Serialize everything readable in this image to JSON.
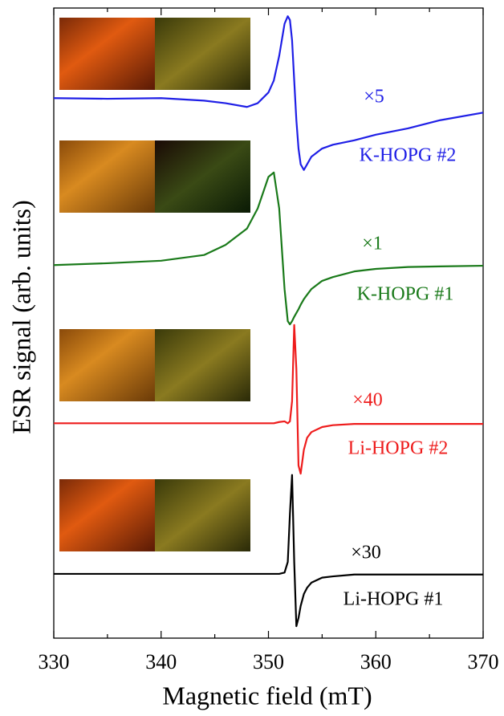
{
  "chart_data": {
    "type": "line",
    "x_label": "Magnetic field (mT)",
    "y_label": "ESR signal (arb. units)",
    "xlim": [
      330,
      370
    ],
    "xticks": [
      330,
      340,
      350,
      360,
      370
    ],
    "xminorticks": [
      335,
      345,
      355,
      365
    ],
    "ylim": [
      0,
      100
    ],
    "x": [
      330,
      335,
      340,
      344,
      346,
      348,
      349,
      350,
      350.5,
      351,
      351.5,
      351.8,
      352,
      352.2,
      352.4,
      352.6,
      352.8,
      353,
      353.3,
      353.6,
      354,
      355,
      356,
      358,
      360,
      363,
      366,
      370
    ],
    "series": [
      {
        "name": "K-HOPG #2",
        "multiplier": "×5",
        "color": "#1f1fe6",
        "values": [
          85.7,
          85.6,
          85.7,
          85.3,
          84.9,
          84.3,
          84.9,
          86.6,
          88.5,
          92.4,
          97.5,
          98.7,
          98.1,
          94.9,
          88.5,
          82.2,
          77.7,
          75.2,
          74.3,
          75.2,
          76.4,
          77.7,
          78.3,
          79.0,
          79.9,
          80.9,
          82.2,
          83.4
        ]
      },
      {
        "name": "K-HOPG #1",
        "multiplier": "×1",
        "color": "#1a7a1a",
        "values": [
          59.2,
          59.5,
          59.9,
          60.8,
          62.4,
          65.0,
          68.2,
          73.2,
          73.9,
          68.2,
          55.4,
          50.3,
          49.8,
          50.3,
          51.0,
          51.6,
          52.2,
          52.9,
          53.8,
          54.5,
          55.4,
          56.7,
          57.3,
          58.2,
          58.6,
          58.9,
          59.0,
          59.1
        ]
      },
      {
        "name": "Li-HOPG #2",
        "multiplier": "×40",
        "color": "#ee1c1c",
        "values": [
          34.1,
          34.1,
          34.1,
          34.1,
          34.1,
          34.1,
          34.1,
          34.1,
          34.1,
          34.3,
          34.4,
          34.1,
          34.4,
          37.6,
          49.7,
          42.7,
          27.4,
          26.1,
          29.9,
          31.8,
          32.7,
          33.5,
          33.8,
          34.0,
          34.0,
          34.0,
          34.0,
          34.0
        ]
      },
      {
        "name": "Li-HOPG #1",
        "multiplier": "×30",
        "color": "#000000",
        "values": [
          10.2,
          10.2,
          10.2,
          10.2,
          10.2,
          10.2,
          10.2,
          10.2,
          10.2,
          10.2,
          10.4,
          12.1,
          19.7,
          25.9,
          12.1,
          1.9,
          3.2,
          5.1,
          7.0,
          8.0,
          8.8,
          9.6,
          9.8,
          10.1,
          10.1,
          10.1,
          10.1,
          10.1
        ]
      }
    ]
  }
}
